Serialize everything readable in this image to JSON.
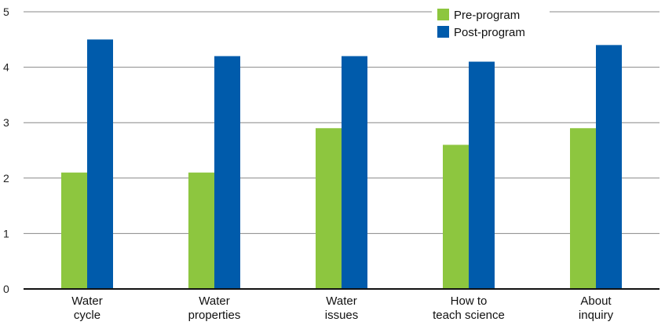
{
  "chart_data": {
    "type": "bar",
    "categories": [
      [
        "Water",
        "cycle"
      ],
      [
        "Water",
        "properties"
      ],
      [
        "Water",
        "issues"
      ],
      [
        "How to",
        "teach science"
      ],
      [
        "About",
        "inquiry"
      ]
    ],
    "series": [
      {
        "name": "Pre-program",
        "color": "#8dc63f",
        "values": [
          2.1,
          2.1,
          2.9,
          2.6,
          2.9
        ]
      },
      {
        "name": "Post-program",
        "color": "#005bab",
        "values": [
          4.5,
          4.2,
          4.2,
          4.1,
          4.4
        ]
      }
    ],
    "ylim": [
      0,
      5
    ],
    "yticks": [
      0,
      1,
      2,
      3,
      4,
      5
    ],
    "grid": true,
    "legend_position": "top-right"
  }
}
